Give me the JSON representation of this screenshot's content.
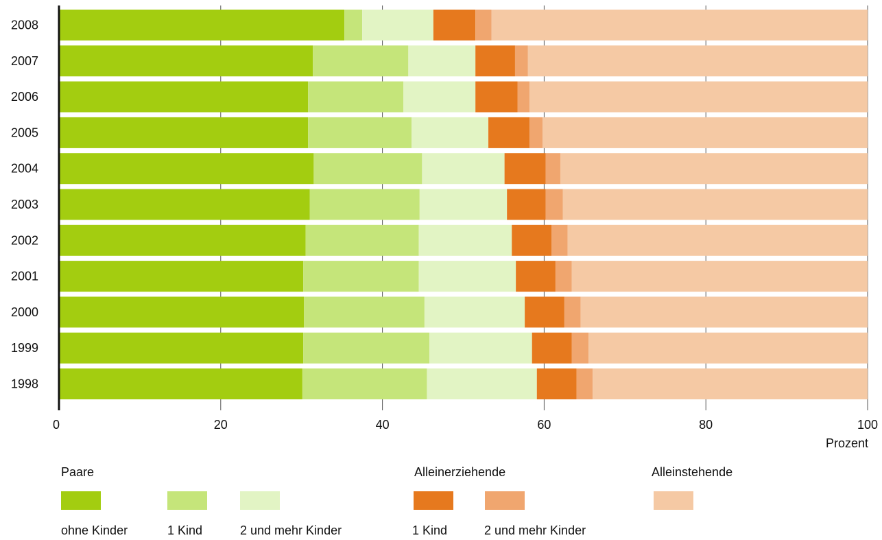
{
  "chart_data": {
    "type": "bar",
    "orientation": "horizontal",
    "stacked": true,
    "categories": [
      "2008",
      "2007",
      "2006",
      "2005",
      "2004",
      "2003",
      "2002",
      "2001",
      "2000",
      "1999",
      "1998"
    ],
    "series": [
      {
        "name": "ohne Kinder",
        "group": "Paare",
        "color": "#a3cd10",
        "values": [
          35.3,
          31.4,
          30.8,
          30.8,
          31.5,
          31.0,
          30.5,
          30.2,
          30.3,
          30.2,
          30.1
        ]
      },
      {
        "name": "1 Kind",
        "group": "Paare",
        "color": "#c5e57a",
        "values": [
          2.2,
          11.8,
          11.8,
          12.8,
          13.4,
          13.6,
          14.0,
          14.3,
          14.9,
          15.6,
          15.4
        ]
      },
      {
        "name": "2 und mehr Kinder",
        "group": "Paare",
        "color": "#e2f4c4",
        "values": [
          8.8,
          8.3,
          8.9,
          9.5,
          10.2,
          10.8,
          11.5,
          12.0,
          12.4,
          12.7,
          13.6
        ]
      },
      {
        "name": "1 Kind",
        "group": "Alleinerziehende",
        "color": "#e6791e",
        "values": [
          5.2,
          4.9,
          5.2,
          5.1,
          5.1,
          4.8,
          4.9,
          4.9,
          4.9,
          4.9,
          4.9
        ]
      },
      {
        "name": "2 und mehr Kinder",
        "group": "Alleinerziehende",
        "color": "#f0a66f",
        "values": [
          2.0,
          1.6,
          1.5,
          1.6,
          1.8,
          2.1,
          2.0,
          2.0,
          2.0,
          2.1,
          2.0
        ]
      },
      {
        "name": "Alleinstehende",
        "group": "Alleinstehende",
        "color": "#f5c9a4",
        "values": [
          46.5,
          42.0,
          41.8,
          40.2,
          38.0,
          37.7,
          37.1,
          36.6,
          35.5,
          34.5,
          34.0
        ]
      }
    ],
    "xlim": [
      0,
      100
    ],
    "xticks": [
      "0",
      "20",
      "40",
      "60",
      "80",
      "100"
    ],
    "xlabel": "Prozent",
    "ylabel": "",
    "grid": true,
    "legend_position": "bottom"
  },
  "legend": {
    "groups": [
      {
        "title": "Paare",
        "items": [
          {
            "label": "ohne Kinder",
            "color": "#a3cd10"
          },
          {
            "label": "1 Kind",
            "color": "#c5e57a"
          },
          {
            "label": "2 und mehr Kinder",
            "color": "#e2f4c4"
          }
        ]
      },
      {
        "title": "Alleinerziehende",
        "items": [
          {
            "label": "1 Kind",
            "color": "#e6791e"
          },
          {
            "label": "2 und mehr Kinder",
            "color": "#f0a66f"
          }
        ]
      },
      {
        "title": "Alleinstehende",
        "items": [
          {
            "label": "",
            "color": "#f5c9a4"
          }
        ]
      }
    ]
  }
}
